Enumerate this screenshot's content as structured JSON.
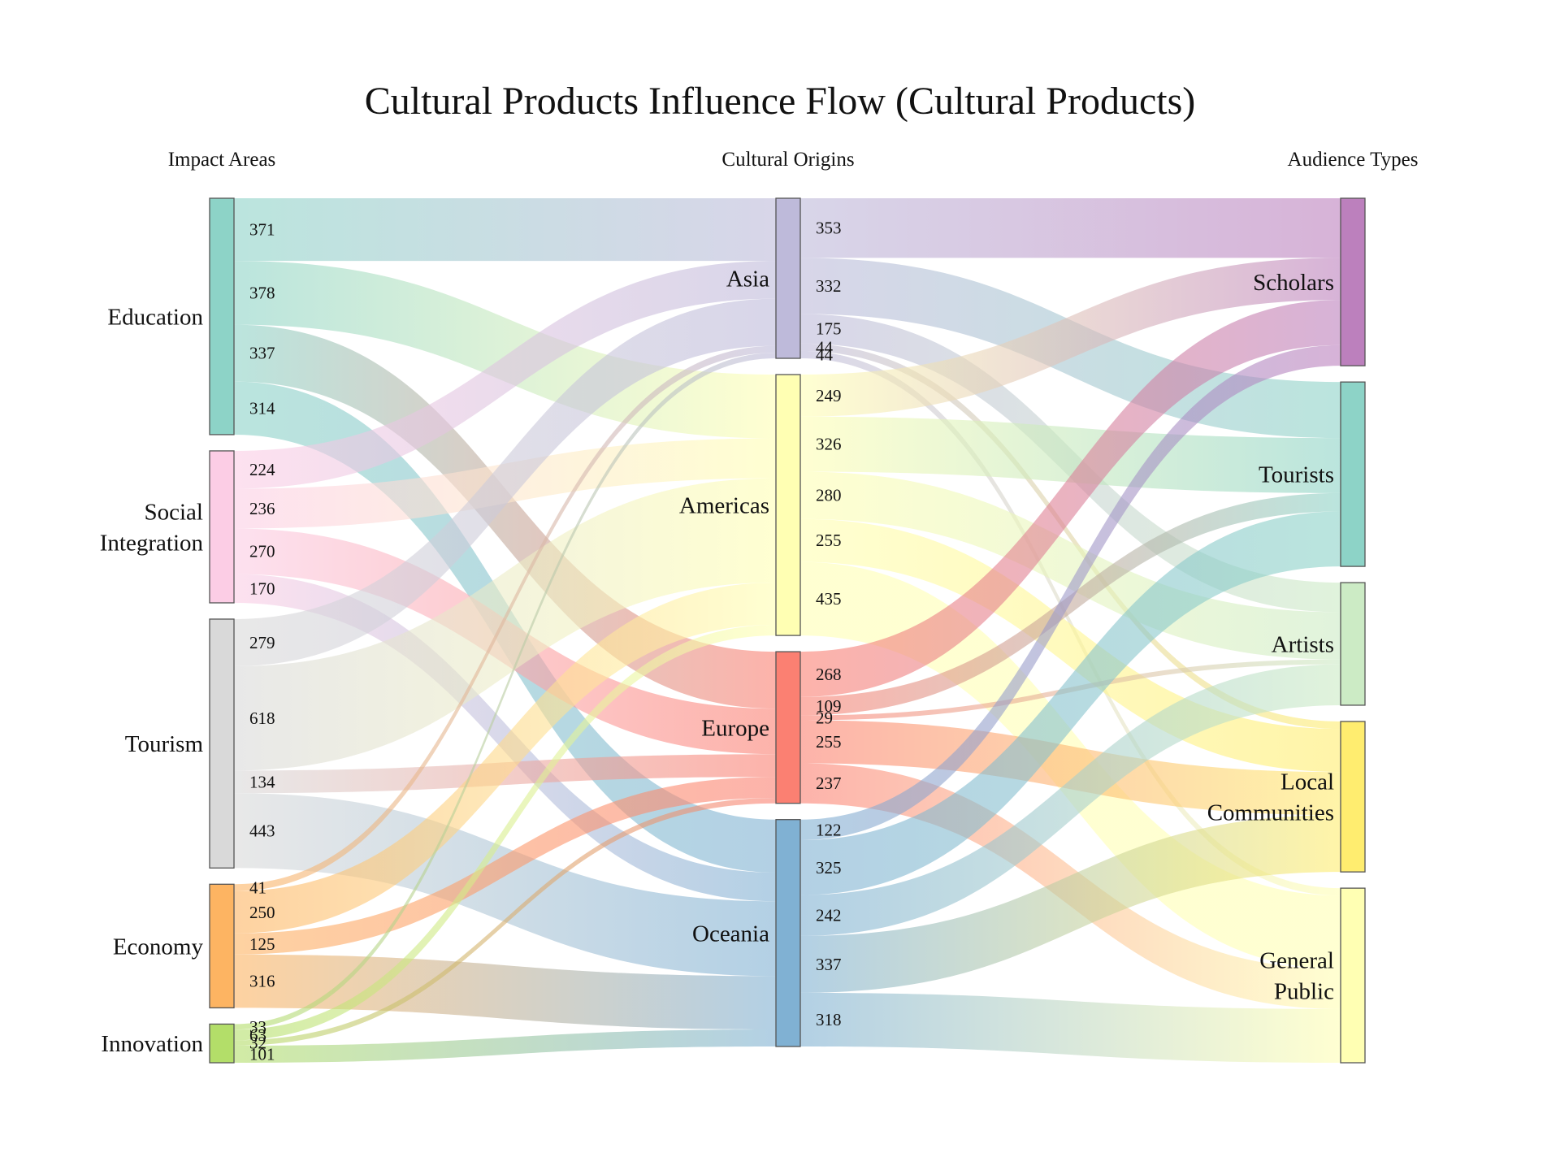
{
  "chart_data": {
    "type": "sankey",
    "title": "Cultural Products Influence Flow (Cultural Products)",
    "column_headers": [
      "Impact Areas",
      "Cultural Origins",
      "Audience Types"
    ],
    "columns": [
      [
        "Education",
        "Social Integration",
        "Tourism",
        "Economy",
        "Innovation"
      ],
      [
        "Asia",
        "Americas",
        "Europe",
        "Oceania"
      ],
      [
        "Scholars",
        "Tourists",
        "Artists",
        "Local Communities",
        "General Public"
      ]
    ],
    "node_colors": {
      "Education": "#8dd3c7",
      "Social Integration": "#fccde5",
      "Tourism": "#d9d9d9",
      "Economy": "#fdb462",
      "Innovation": "#b3de69",
      "Asia": "#bebada",
      "Americas": "#ffffb3",
      "Europe": "#fb8072",
      "Oceania": "#80b1d3",
      "Scholars": "#bc80bd",
      "Tourists": "#8dd3c7",
      "Artists": "#ccebc5",
      "Local Communities": "#ffed6f",
      "General Public": "#ffffb3"
    },
    "links": [
      {
        "source": "Education",
        "target": "Asia",
        "value": 371
      },
      {
        "source": "Education",
        "target": "Americas",
        "value": 378
      },
      {
        "source": "Education",
        "target": "Europe",
        "value": 337
      },
      {
        "source": "Education",
        "target": "Oceania",
        "value": 314
      },
      {
        "source": "Social Integration",
        "target": "Asia",
        "value": 224
      },
      {
        "source": "Social Integration",
        "target": "Americas",
        "value": 236
      },
      {
        "source": "Social Integration",
        "target": "Europe",
        "value": 270
      },
      {
        "source": "Social Integration",
        "target": "Oceania",
        "value": 170
      },
      {
        "source": "Tourism",
        "target": "Asia",
        "value": 279
      },
      {
        "source": "Tourism",
        "target": "Americas",
        "value": 618
      },
      {
        "source": "Tourism",
        "target": "Europe",
        "value": 134
      },
      {
        "source": "Tourism",
        "target": "Oceania",
        "value": 443
      },
      {
        "source": "Economy",
        "target": "Asia",
        "value": 41
      },
      {
        "source": "Economy",
        "target": "Americas",
        "value": 250
      },
      {
        "source": "Economy",
        "target": "Europe",
        "value": 125
      },
      {
        "source": "Economy",
        "target": "Oceania",
        "value": 316
      },
      {
        "source": "Innovation",
        "target": "Asia",
        "value": 33
      },
      {
        "source": "Innovation",
        "target": "Americas",
        "value": 63
      },
      {
        "source": "Innovation",
        "target": "Europe",
        "value": 32
      },
      {
        "source": "Innovation",
        "target": "Oceania",
        "value": 101
      },
      {
        "source": "Asia",
        "target": "Scholars",
        "value": 353
      },
      {
        "source": "Asia",
        "target": "Tourists",
        "value": 332
      },
      {
        "source": "Asia",
        "target": "Artists",
        "value": 175
      },
      {
        "source": "Asia",
        "target": "Local Communities",
        "value": 44
      },
      {
        "source": "Asia",
        "target": "General Public",
        "value": 44
      },
      {
        "source": "Americas",
        "target": "Scholars",
        "value": 249
      },
      {
        "source": "Americas",
        "target": "Tourists",
        "value": 326
      },
      {
        "source": "Americas",
        "target": "Artists",
        "value": 280
      },
      {
        "source": "Americas",
        "target": "Local Communities",
        "value": 255
      },
      {
        "source": "Americas",
        "target": "General Public",
        "value": 435
      },
      {
        "source": "Europe",
        "target": "Scholars",
        "value": 268
      },
      {
        "source": "Europe",
        "target": "Tourists",
        "value": 109
      },
      {
        "source": "Europe",
        "target": "Artists",
        "value": 29
      },
      {
        "source": "Europe",
        "target": "Local Communities",
        "value": 255
      },
      {
        "source": "Europe",
        "target": "General Public",
        "value": 237
      },
      {
        "source": "Oceania",
        "target": "Scholars",
        "value": 122
      },
      {
        "source": "Oceania",
        "target": "Tourists",
        "value": 325
      },
      {
        "source": "Oceania",
        "target": "Artists",
        "value": 242
      },
      {
        "source": "Oceania",
        "target": "Local Communities",
        "value": 337
      },
      {
        "source": "Oceania",
        "target": "General Public",
        "value": 318
      }
    ]
  }
}
